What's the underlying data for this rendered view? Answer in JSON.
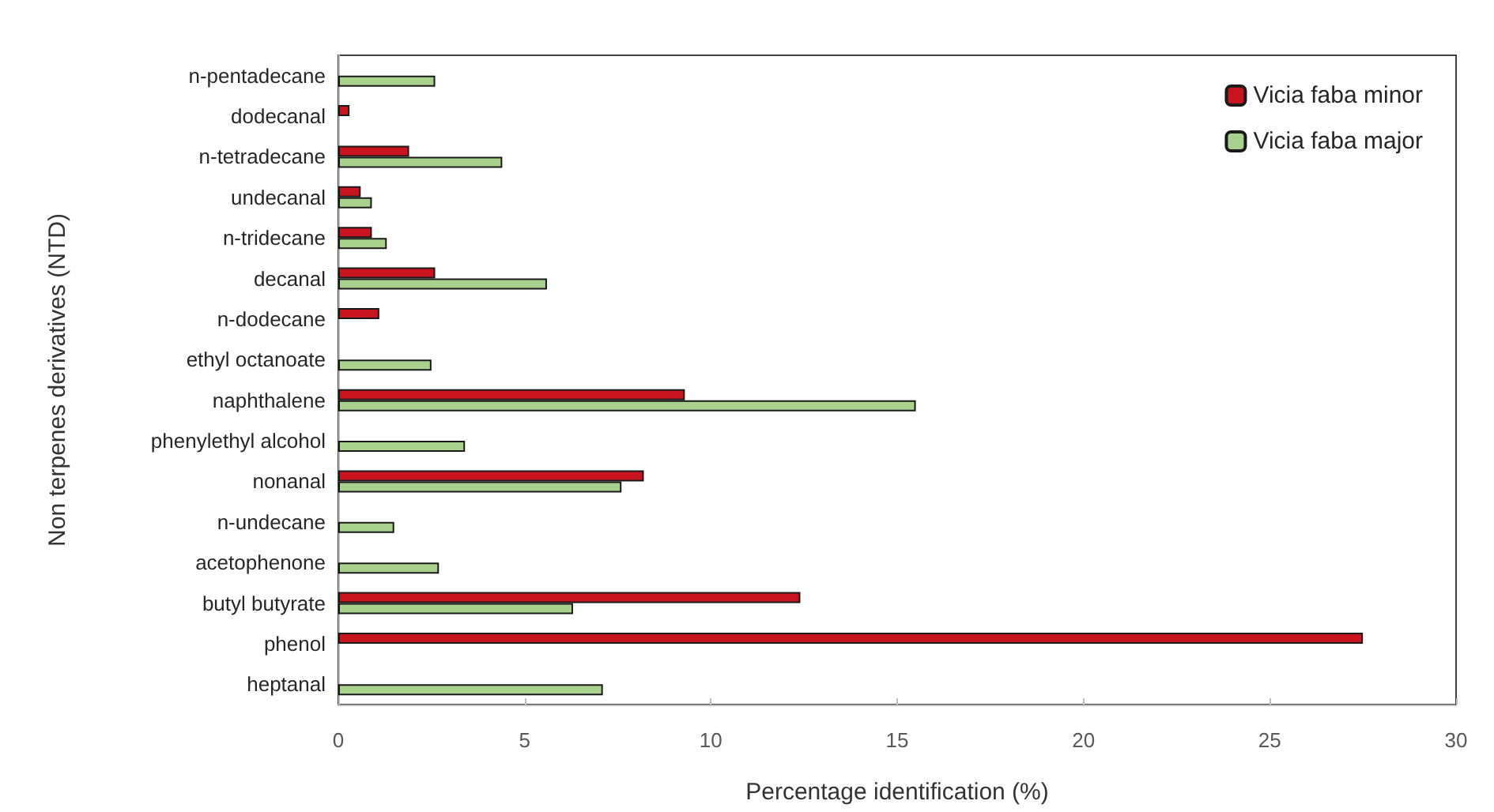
{
  "chart_data": {
    "type": "bar",
    "orientation": "horizontal",
    "xlabel": "Percentage identification (%)",
    "ylabel": "Non terpenes derivatives (NTD)",
    "categories": [
      "n-pentadecane",
      "dodecanal",
      "n-tetradecane",
      "undecanal",
      "n-tridecane",
      "decanal",
      "n-dodecane",
      "ethyl octanoate",
      "naphthalene",
      "phenylethyl alcohol",
      "nonanal",
      "n-undecane",
      "acetophenone",
      "butyl butyrate",
      "phenol",
      "heptanal"
    ],
    "series": [
      {
        "name": "Vicia faba minor",
        "color": "#c8141e",
        "values": [
          null,
          0.3,
          1.9,
          0.6,
          0.9,
          2.6,
          1.1,
          null,
          9.3,
          null,
          8.2,
          null,
          null,
          12.4,
          27.5,
          null
        ]
      },
      {
        "name": "Vicia faba major",
        "color": "#a9d18e",
        "values": [
          2.6,
          null,
          4.4,
          0.9,
          1.3,
          5.6,
          null,
          2.5,
          15.5,
          3.4,
          7.6,
          1.5,
          2.7,
          6.3,
          null,
          7.1
        ]
      }
    ],
    "xlim": [
      0,
      30
    ],
    "xticks": [
      0,
      5,
      10,
      15,
      20,
      25,
      30
    ],
    "grid": false,
    "legend": "top right"
  }
}
